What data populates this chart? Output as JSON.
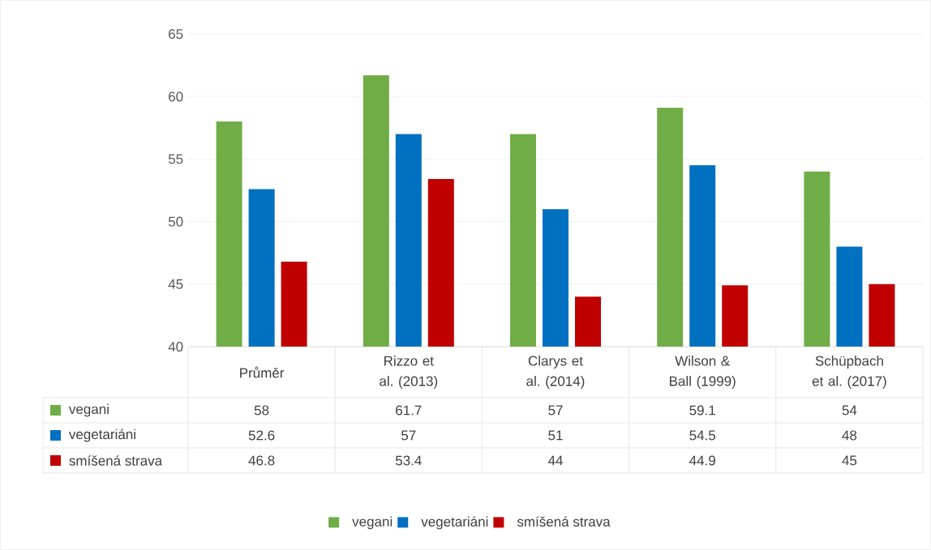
{
  "chart_data": {
    "type": "bar",
    "categories": [
      "Průměr",
      "Rizzo et al. (2013)",
      "Clarys et al. (2014)",
      "Wilson & Ball (1999)",
      "Schüpbach et al. (2017)"
    ],
    "series": [
      {
        "name": "vegani",
        "color": "#70ad47",
        "values": [
          58,
          61.7,
          57,
          59.1,
          54
        ]
      },
      {
        "name": "vegetariáni",
        "color": "#0070c0",
        "values": [
          52.6,
          57,
          51,
          54.5,
          48
        ]
      },
      {
        "name": "smíšená strava",
        "color": "#c00000",
        "values": [
          46.8,
          53.4,
          44,
          44.9,
          45
        ]
      }
    ],
    "ylim": [
      40,
      65
    ],
    "yticks": [
      40,
      45,
      50,
      55,
      60,
      65
    ],
    "grid": "y",
    "legend": "bottom",
    "data_labels": true
  }
}
